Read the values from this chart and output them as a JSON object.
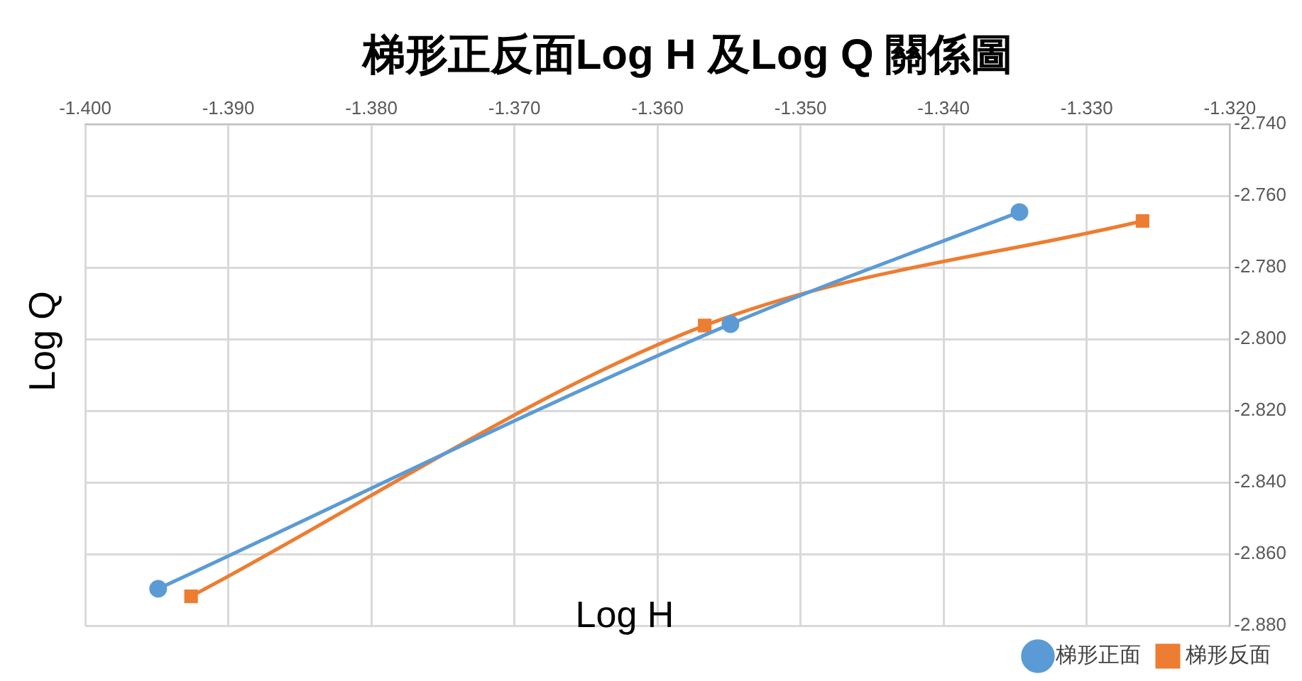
{
  "chart_data": {
    "type": "line",
    "title": "梯形正反面Log H 及Log Q 關係圖",
    "xlabel": "Log H",
    "ylabel": "Log Q",
    "series": [
      {
        "name": "梯形正面",
        "color": "#5b9bd5",
        "marker": "circle",
        "x": [
          -1.3949,
          -1.3549,
          -1.3347
        ],
        "values": [
          -2.8697,
          -2.7958,
          -2.7645
        ]
      },
      {
        "name": "梯形反面",
        "color": "#ed7d31",
        "marker": "square",
        "x": [
          -1.3926,
          -1.3567,
          -1.3261
        ],
        "values": [
          -2.8718,
          -2.7962,
          -2.767
        ]
      }
    ],
    "xlim": [
      -1.4,
      -1.32
    ],
    "xticks": [
      {
        "value": -1.4,
        "label": "-1.400"
      },
      {
        "value": -1.39,
        "label": "-1.390"
      },
      {
        "value": -1.38,
        "label": "-1.380"
      },
      {
        "value": -1.37,
        "label": "-1.370"
      },
      {
        "value": -1.36,
        "label": "-1.360"
      },
      {
        "value": -1.35,
        "label": "-1.350"
      },
      {
        "value": -1.34,
        "label": "-1.340"
      },
      {
        "value": -1.33,
        "label": "-1.330"
      },
      {
        "value": -1.32,
        "label": "-1.320"
      }
    ],
    "ylim": [
      -2.88,
      -2.74
    ],
    "yticks": [
      {
        "value": -2.88,
        "label": "-2.880"
      },
      {
        "value": -2.86,
        "label": "-2.860"
      },
      {
        "value": -2.84,
        "label": "-2.840"
      },
      {
        "value": -2.82,
        "label": "-2.820"
      },
      {
        "value": -2.8,
        "label": "-2.800"
      },
      {
        "value": -2.78,
        "label": "-2.780"
      },
      {
        "value": -2.76,
        "label": "-2.760"
      },
      {
        "value": -2.74,
        "label": "-2.740"
      }
    ],
    "grid": true,
    "legend": "bottom right",
    "line_style": "solid"
  }
}
